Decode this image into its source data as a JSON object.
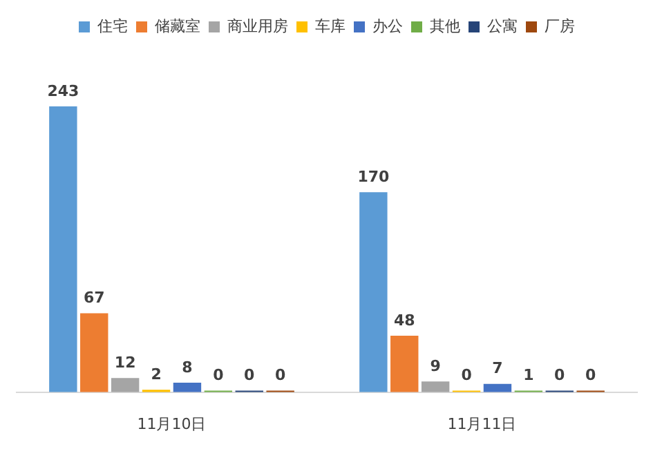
{
  "chart_data": {
    "type": "bar",
    "categories": [
      "11月10日",
      "11月11日"
    ],
    "series": [
      {
        "name": "住宅",
        "color": "#5b9bd5",
        "values": [
          243,
          170
        ]
      },
      {
        "name": "储藏室",
        "color": "#ed7d31",
        "values": [
          67,
          48
        ]
      },
      {
        "name": "商业用房",
        "color": "#a5a5a5",
        "values": [
          12,
          9
        ]
      },
      {
        "name": "车库",
        "color": "#ffc000",
        "values": [
          2,
          0
        ]
      },
      {
        "name": "办公",
        "color": "#4472c4",
        "values": [
          8,
          7
        ]
      },
      {
        "name": "其他",
        "color": "#70ad47",
        "values": [
          0,
          1
        ]
      },
      {
        "name": "公寓",
        "color": "#264478",
        "values": [
          0,
          0
        ]
      },
      {
        "name": "厂房",
        "color": "#9e480e",
        "values": [
          0,
          0
        ]
      }
    ],
    "data_labels": true,
    "legend": "top",
    "grid": false
  }
}
